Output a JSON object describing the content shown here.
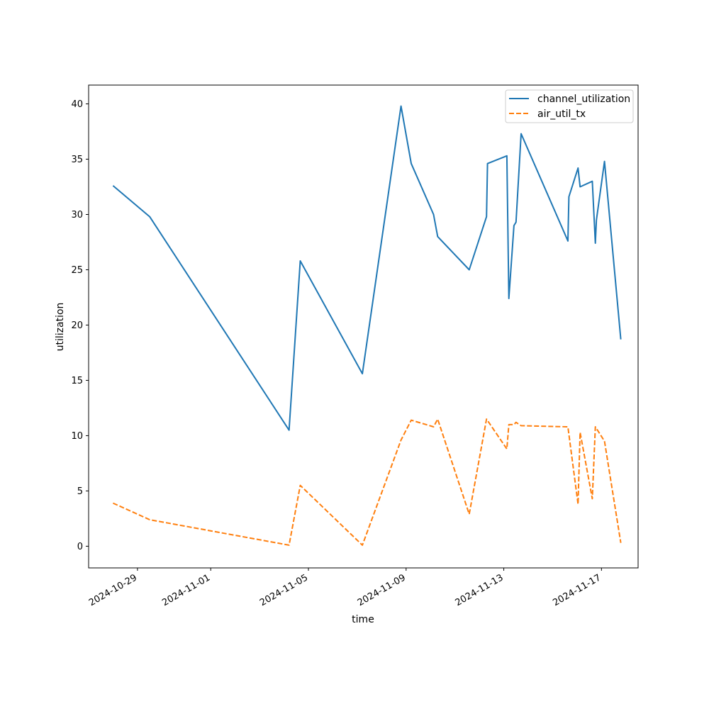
{
  "chart_data": {
    "type": "line",
    "xlabel": "time",
    "ylabel": "utilization",
    "x_type": "date",
    "xlim": [
      "2024-10-27T00:00",
      "2024-11-18T12:00"
    ],
    "ylim": [
      -1.96,
      41.7
    ],
    "x_ticks": [
      "2024-10-29",
      "2024-11-01",
      "2024-11-05",
      "2024-11-09",
      "2024-11-13",
      "2024-11-17"
    ],
    "y_ticks": [
      0,
      5,
      10,
      15,
      20,
      25,
      30,
      35,
      40
    ],
    "grid": false,
    "legend_position": "upper right",
    "series": [
      {
        "name": "channel_utilization",
        "color": "#1f77b4",
        "style": "solid",
        "x": [
          "2024-10-28T00:00",
          "2024-10-29T12:00",
          "2024-11-04T05:00",
          "2024-11-04T16:00",
          "2024-11-07T05:00",
          "2024-11-08T19:00",
          "2024-11-09T05:00",
          "2024-11-10T03:00",
          "2024-11-10T07:00",
          "2024-11-11T14:00",
          "2024-11-12T07:00",
          "2024-11-12T08:00",
          "2024-11-13T03:00",
          "2024-11-13T05:00",
          "2024-11-13T10:00",
          "2024-11-13T12:00",
          "2024-11-13T17:00",
          "2024-11-15T15:00",
          "2024-11-15T16:00",
          "2024-11-16T01:00",
          "2024-11-16T03:00",
          "2024-11-16T15:00",
          "2024-11-16T18:00",
          "2024-11-16T19:00",
          "2024-11-17T03:00",
          "2024-11-17T19:00"
        ],
        "y": [
          32.6,
          29.8,
          10.5,
          25.8,
          15.6,
          39.8,
          34.6,
          30.0,
          28.0,
          25.0,
          29.8,
          34.6,
          35.3,
          22.4,
          29.0,
          29.3,
          37.3,
          27.6,
          31.6,
          34.2,
          32.5,
          33.0,
          27.4,
          29.5,
          34.8,
          18.7
        ]
      },
      {
        "name": "air_util_tx",
        "color": "#ff7f0e",
        "style": "dashed",
        "x": [
          "2024-10-28T00:00",
          "2024-10-29T12:00",
          "2024-11-04T05:00",
          "2024-11-04T16:00",
          "2024-11-07T05:00",
          "2024-11-08T19:00",
          "2024-11-09T05:00",
          "2024-11-10T03:00",
          "2024-11-10T07:00",
          "2024-11-11T14:00",
          "2024-11-12T07:00",
          "2024-11-13T03:00",
          "2024-11-13T05:00",
          "2024-11-13T10:00",
          "2024-11-13T12:00",
          "2024-11-13T17:00",
          "2024-11-15T15:00",
          "2024-11-16T01:00",
          "2024-11-16T03:00",
          "2024-11-16T15:00",
          "2024-11-16T18:00",
          "2024-11-17T03:00",
          "2024-11-17T19:00"
        ],
        "y": [
          3.9,
          2.4,
          0.1,
          5.5,
          0.1,
          9.6,
          11.4,
          10.8,
          11.5,
          2.9,
          11.5,
          8.8,
          11.0,
          11.0,
          11.2,
          10.9,
          10.8,
          3.8,
          10.3,
          4.3,
          10.8,
          9.5,
          0.3
        ]
      }
    ]
  }
}
